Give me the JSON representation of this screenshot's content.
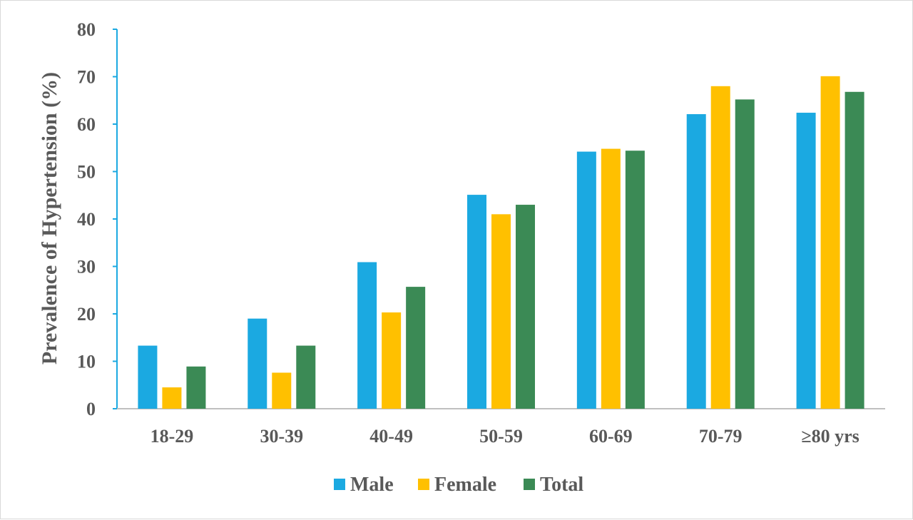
{
  "chart_data": {
    "type": "bar",
    "categories": [
      "18-29",
      "30-39",
      "40-49",
      "50-59",
      "60-69",
      "70-79",
      "≥80 yrs"
    ],
    "series": [
      {
        "name": "Male",
        "values": [
          13.3,
          19.0,
          30.9,
          45.1,
          54.2,
          62.1,
          62.4
        ]
      },
      {
        "name": "Female",
        "values": [
          4.5,
          7.6,
          20.3,
          41.0,
          54.8,
          68.0,
          70.1
        ]
      },
      {
        "name": "Total",
        "values": [
          8.9,
          13.3,
          25.7,
          43.0,
          54.4,
          65.2,
          66.8
        ]
      }
    ],
    "colors": {
      "Male": "#1ba9e1",
      "Female": "#ffc000",
      "Total": "#3b8a55",
      "axis": "#1ba9e1"
    },
    "xlabel": "",
    "ylabel": "Prevalence of Hypertension (%)",
    "ylim": [
      0,
      80
    ],
    "yticks": [
      0,
      10,
      20,
      30,
      40,
      50,
      60,
      70,
      80
    ],
    "grid": false,
    "legend_position": "bottom"
  }
}
